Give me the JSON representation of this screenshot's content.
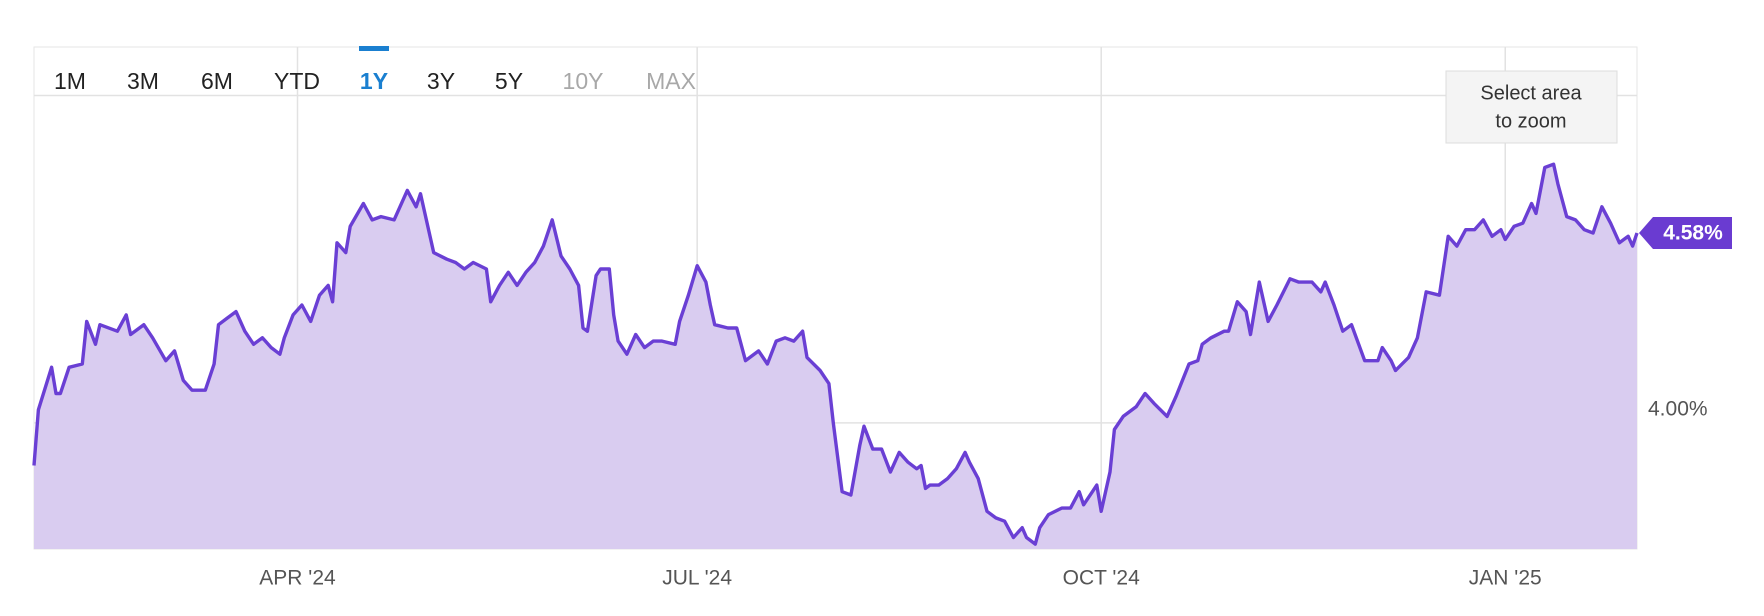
{
  "chart_data": {
    "type": "area",
    "x": [
      0,
      1,
      4,
      5,
      6,
      8,
      11,
      12,
      14,
      15,
      19,
      21,
      22,
      25,
      27,
      30,
      32,
      34,
      36,
      39,
      41,
      42,
      44,
      46,
      48,
      50,
      52,
      54,
      56,
      57,
      59,
      61,
      63,
      65,
      67,
      68,
      69,
      71,
      72,
      75,
      77,
      79,
      82,
      85,
      87,
      88,
      91,
      94,
      96,
      98,
      100,
      103,
      104,
      106,
      108,
      110,
      112,
      114,
      116,
      118,
      120,
      122,
      124,
      125,
      126,
      128,
      129,
      131,
      132,
      133,
      135,
      137,
      139,
      141,
      143,
      146,
      147,
      149,
      151,
      153,
      154,
      155,
      158,
      160,
      162,
      163,
      165,
      167,
      169,
      171,
      173,
      175,
      176,
      179,
      181,
      182,
      184,
      186,
      188,
      189,
      191,
      193,
      195,
      197,
      199,
      201,
      202,
      203,
      204,
      206,
      208,
      210,
      212,
      213,
      215,
      217,
      219,
      221,
      223,
      225,
      226,
      228,
      229,
      231,
      234,
      236,
      238,
      239,
      241,
      242,
      243,
      245,
      246,
      248,
      251,
      253,
      255,
      258,
      260,
      263,
      265,
      266,
      268,
      271,
      272,
      274,
      276,
      277,
      279,
      281,
      283,
      286,
      288,
      291,
      293,
      294,
      296,
      298,
      300,
      303,
      306,
      307,
      309,
      310,
      313,
      315,
      317,
      320,
      322,
      324,
      326,
      328,
      330,
      332,
      334,
      335,
      337,
      339,
      341,
      342,
      344,
      346,
      347,
      349,
      351,
      353,
      355,
      357,
      359,
      361,
      363,
      364,
      365
    ],
    "series": [
      {
        "color": "#6a3fd4",
        "fill": "#d9ccf0",
        "values": [
          3.87,
          4.04,
          4.17,
          4.09,
          4.09,
          4.17,
          4.18,
          4.31,
          4.24,
          4.3,
          4.28,
          4.33,
          4.27,
          4.3,
          4.26,
          4.19,
          4.22,
          4.13,
          4.1,
          4.1,
          4.18,
          4.3,
          4.32,
          4.34,
          4.28,
          4.24,
          4.26,
          4.23,
          4.21,
          4.26,
          4.33,
          4.36,
          4.31,
          4.39,
          4.42,
          4.37,
          4.55,
          4.52,
          4.6,
          4.67,
          4.62,
          4.63,
          4.62,
          4.71,
          4.66,
          4.7,
          4.52,
          4.5,
          4.49,
          4.47,
          4.49,
          4.47,
          4.37,
          4.42,
          4.46,
          4.42,
          4.46,
          4.49,
          4.54,
          4.62,
          4.51,
          4.47,
          4.42,
          4.29,
          4.28,
          4.45,
          4.47,
          4.47,
          4.33,
          4.25,
          4.21,
          4.27,
          4.23,
          4.25,
          4.25,
          4.24,
          4.31,
          4.39,
          4.48,
          4.43,
          4.36,
          4.3,
          4.29,
          4.29,
          4.19,
          4.2,
          4.22,
          4.18,
          4.25,
          4.26,
          4.25,
          4.28,
          4.2,
          4.16,
          4.12,
          4.0,
          3.79,
          3.78,
          3.93,
          3.99,
          3.92,
          3.92,
          3.85,
          3.91,
          3.88,
          3.86,
          3.87,
          3.8,
          3.81,
          3.81,
          3.83,
          3.86,
          3.91,
          3.88,
          3.83,
          3.73,
          3.71,
          3.7,
          3.65,
          3.68,
          3.65,
          3.63,
          3.68,
          3.72,
          3.74,
          3.74,
          3.79,
          3.75,
          3.79,
          3.81,
          3.73,
          3.85,
          3.98,
          4.02,
          4.05,
          4.09,
          4.06,
          4.02,
          4.08,
          4.18,
          4.19,
          4.24,
          4.26,
          4.28,
          4.28,
          4.37,
          4.34,
          4.27,
          4.43,
          4.31,
          4.36,
          4.44,
          4.43,
          4.43,
          4.4,
          4.43,
          4.36,
          4.28,
          4.3,
          4.19,
          4.19,
          4.23,
          4.19,
          4.16,
          4.2,
          4.26,
          4.4,
          4.39,
          4.57,
          4.54,
          4.59,
          4.59,
          4.62,
          4.57,
          4.59,
          4.56,
          4.6,
          4.61,
          4.67,
          4.64,
          4.78,
          4.79,
          4.73,
          4.63,
          4.62,
          4.59,
          4.58,
          4.66,
          4.61,
          4.55,
          4.57,
          4.54,
          4.58
        ]
      }
    ],
    "xlim": [
      0,
      365
    ],
    "xticks": [
      {
        "value": 60,
        "label": "APR '24"
      },
      {
        "value": 151,
        "label": "JUL '24"
      },
      {
        "value": 243,
        "label": "OCT '24"
      },
      {
        "value": 335,
        "label": "JAN '25"
      }
    ],
    "ylim": [
      3.615,
      5.148
    ],
    "yticks": [
      {
        "value": 4,
        "label": "4.00%"
      }
    ],
    "ygrid": [
      4,
      5
    ],
    "grid": true,
    "current_value": {
      "value": 4.58,
      "label": "4.58%",
      "color": "#6a3bd1"
    }
  },
  "toolbar": {
    "range_buttons": [
      {
        "label": "1M",
        "state": "normal"
      },
      {
        "label": "3M",
        "state": "normal"
      },
      {
        "label": "6M",
        "state": "normal"
      },
      {
        "label": "YTD",
        "state": "normal"
      },
      {
        "label": "1Y",
        "state": "active"
      },
      {
        "label": "3Y",
        "state": "normal"
      },
      {
        "label": "5Y",
        "state": "normal"
      },
      {
        "label": "10Y",
        "state": "disabled"
      },
      {
        "label": "MAX",
        "state": "disabled"
      }
    ],
    "zoom_hint": [
      "Select area",
      "to zoom"
    ]
  }
}
